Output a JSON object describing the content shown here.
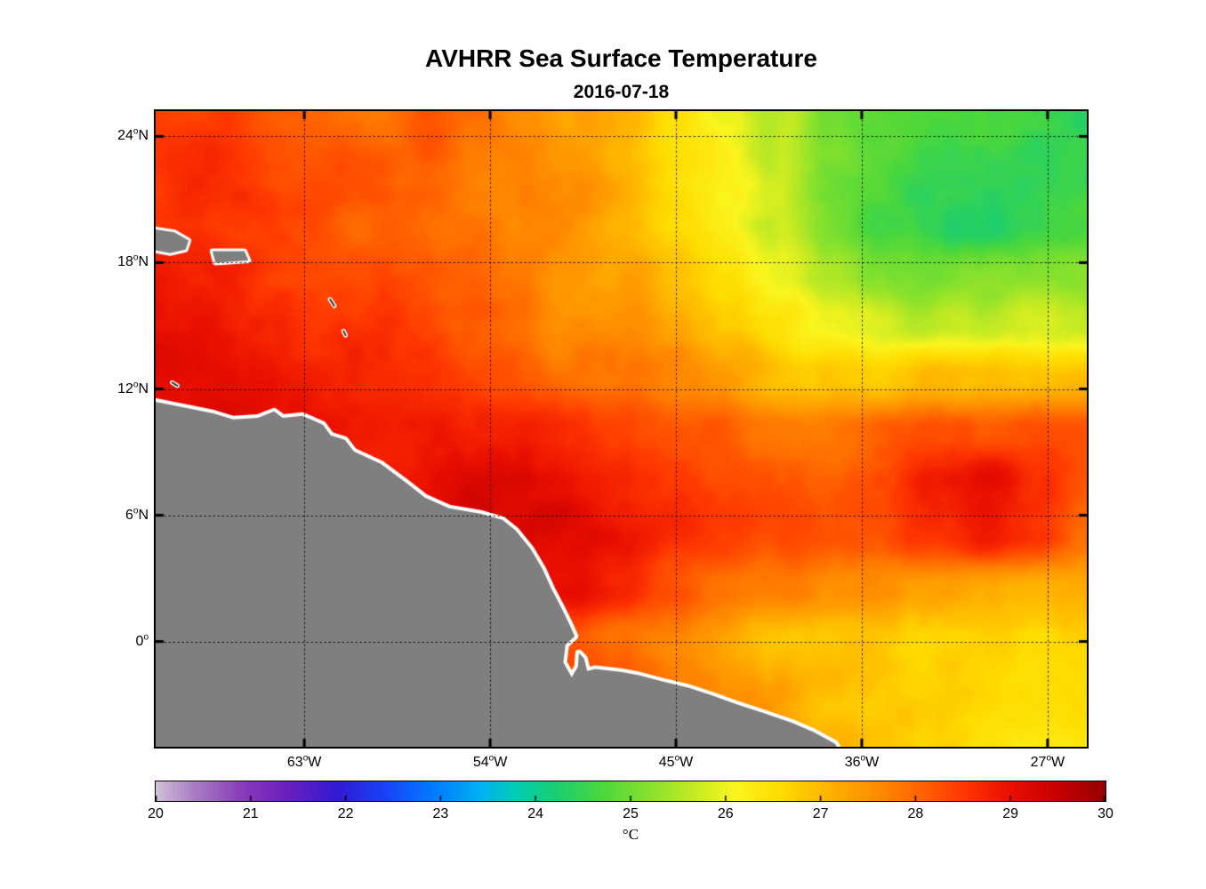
{
  "title": "AVHRR Sea Surface Temperature",
  "subtitle": "2016-07-18",
  "chart_data": {
    "type": "heatmap",
    "title": "AVHRR Sea Surface Temperature",
    "subtitle": "2016-07-18",
    "grid_on": true,
    "x_axis": {
      "label_ticks": [
        "63°W",
        "54°W",
        "45°W",
        "36°W",
        "27°W"
      ],
      "tick_lons": [
        -63,
        -54,
        -45,
        -36,
        -27
      ],
      "range_lon": [
        -70.2,
        -25.1
      ]
    },
    "y_axis": {
      "label_ticks": [
        "24°N",
        "18°N",
        "12°N",
        "6°N",
        "0°"
      ],
      "tick_lats": [
        24,
        18,
        12,
        6,
        0
      ],
      "range_lat": [
        -5.0,
        25.2
      ]
    },
    "colorbar": {
      "min": 20,
      "max": 30,
      "ticks": [
        "20",
        "21",
        "22",
        "23",
        "24",
        "25",
        "26",
        "27",
        "28",
        "29",
        "30"
      ],
      "label": "°C",
      "orientation": "horizontal",
      "colormap_stops": [
        [
          20.0,
          208,
          192,
          216
        ],
        [
          20.4,
          170,
          125,
          195
        ],
        [
          20.9,
          138,
          60,
          185
        ],
        [
          21.4,
          105,
          30,
          190
        ],
        [
          21.9,
          50,
          25,
          210
        ],
        [
          22.4,
          25,
          65,
          245
        ],
        [
          22.9,
          0,
          120,
          255
        ],
        [
          23.4,
          0,
          175,
          245
        ],
        [
          23.8,
          0,
          205,
          180
        ],
        [
          24.2,
          25,
          205,
          115
        ],
        [
          24.7,
          75,
          215,
          60
        ],
        [
          25.2,
          135,
          225,
          45
        ],
        [
          25.7,
          200,
          235,
          35
        ],
        [
          26.1,
          250,
          245,
          30
        ],
        [
          26.6,
          255,
          218,
          0
        ],
        [
          27.0,
          255,
          185,
          0
        ],
        [
          27.5,
          255,
          148,
          0
        ],
        [
          28.0,
          255,
          105,
          0
        ],
        [
          28.5,
          255,
          55,
          0
        ],
        [
          29.0,
          233,
          15,
          0
        ],
        [
          29.5,
          198,
          0,
          0
        ],
        [
          30.0,
          150,
          0,
          0
        ]
      ]
    },
    "sst_grid": {
      "units": "degC",
      "lons": [
        -70,
        -67.5,
        -65,
        -62.5,
        -60,
        -57.5,
        -55,
        -52.5,
        -50,
        -47.5,
        -45,
        -42.5,
        -40,
        -37.5,
        -35,
        -32.5,
        -30,
        -27.5,
        -25
      ],
      "lats": [
        25,
        22.5,
        20,
        17.5,
        15,
        12.5,
        10,
        7.5,
        5,
        2.5,
        0,
        -2.5,
        -5
      ],
      "values_c": [
        [
          28.4,
          28.5,
          28.3,
          28.2,
          28.0,
          28.2,
          27.8,
          27.5,
          27.2,
          27.0,
          26.6,
          26.2,
          25.6,
          25.0,
          24.8,
          24.6,
          24.5,
          24.4,
          24.3
        ],
        [
          28.5,
          28.6,
          28.4,
          28.3,
          28.4,
          28.1,
          27.9,
          27.6,
          27.4,
          27.1,
          26.7,
          26.3,
          25.7,
          25.1,
          24.8,
          24.5,
          24.4,
          24.5,
          24.3
        ],
        [
          28.6,
          28.5,
          28.6,
          28.4,
          28.3,
          28.2,
          28.0,
          27.8,
          27.5,
          27.2,
          26.8,
          26.3,
          25.8,
          25.2,
          24.8,
          24.6,
          24.5,
          24.6,
          24.7
        ],
        [
          28.7,
          28.8,
          28.6,
          28.5,
          28.4,
          28.3,
          28.1,
          27.9,
          27.6,
          27.3,
          27.0,
          26.5,
          26.0,
          25.5,
          25.1,
          24.9,
          25.0,
          25.1,
          25.0
        ],
        [
          28.8,
          28.9,
          28.8,
          28.7,
          28.6,
          28.4,
          28.2,
          28.0,
          27.8,
          27.6,
          27.2,
          26.8,
          26.4,
          26.0,
          25.7,
          25.5,
          25.4,
          25.6,
          25.5
        ],
        [
          29.0,
          29.0,
          28.9,
          28.8,
          28.7,
          28.6,
          28.4,
          28.2,
          28.0,
          27.8,
          27.6,
          27.3,
          27.0,
          26.8,
          26.6,
          27.0,
          26.8,
          26.7,
          26.8
        ],
        [
          29.2,
          29.1,
          29.0,
          29.0,
          28.9,
          28.9,
          28.8,
          28.7,
          28.6,
          28.4,
          28.2,
          28.1,
          28.0,
          27.9,
          27.9,
          28.0,
          28.1,
          28.2,
          28.1
        ],
        [
          29.0,
          29.0,
          29.0,
          29.0,
          29.0,
          29.1,
          29.2,
          29.1,
          29.0,
          28.8,
          28.6,
          28.4,
          28.3,
          28.2,
          28.3,
          28.8,
          29.0,
          28.6,
          28.0
        ],
        [
          29.2,
          29.2,
          29.2,
          29.2,
          29.2,
          29.2,
          29.3,
          29.3,
          29.2,
          29.0,
          28.8,
          28.5,
          28.3,
          28.2,
          28.3,
          28.6,
          28.9,
          28.5,
          27.8
        ],
        [
          28.8,
          28.8,
          28.8,
          28.8,
          28.8,
          28.8,
          28.9,
          29.0,
          28.9,
          28.6,
          28.2,
          28.0,
          27.8,
          27.6,
          27.5,
          27.4,
          27.3,
          27.2,
          27.0
        ],
        [
          28.2,
          28.2,
          28.2,
          28.2,
          28.2,
          28.2,
          28.3,
          28.4,
          28.2,
          27.9,
          27.5,
          27.2,
          27.0,
          26.9,
          26.8,
          26.8,
          26.7,
          26.6,
          26.5
        ],
        [
          28.0,
          28.0,
          28.0,
          28.0,
          28.0,
          28.0,
          28.0,
          28.1,
          28.2,
          28.0,
          27.8,
          27.6,
          27.5,
          27.0,
          26.8,
          26.7,
          26.6,
          26.5,
          26.4
        ],
        [
          27.8,
          27.8,
          27.8,
          27.8,
          27.8,
          27.8,
          27.8,
          27.8,
          27.9,
          27.9,
          27.8,
          27.7,
          27.5,
          27.2,
          26.9,
          26.6,
          26.4,
          26.3,
          26.2
        ]
      ]
    },
    "land": {
      "color": "#7F7F7F",
      "coast_halo_color": "#FFFFFF",
      "islet_color": "#333333",
      "polygons": {
        "mainland": [
          [
            -70.9,
            11.35
          ],
          [
            -70.2,
            11.39
          ],
          [
            -68.9,
            11.14
          ],
          [
            -67.4,
            10.84
          ],
          [
            -66.45,
            10.55
          ],
          [
            -65.25,
            10.63
          ],
          [
            -64.47,
            10.93
          ],
          [
            -64.04,
            10.63
          ],
          [
            -63.09,
            10.72
          ],
          [
            -62.58,
            10.51
          ],
          [
            -62.1,
            10.3
          ],
          [
            -61.72,
            9.79
          ],
          [
            -61.03,
            9.58
          ],
          [
            -60.6,
            9.03
          ],
          [
            -59.3,
            8.44
          ],
          [
            -58.14,
            7.6
          ],
          [
            -57.15,
            6.84
          ],
          [
            -55.99,
            6.33
          ],
          [
            -54.48,
            6.08
          ],
          [
            -53.4,
            5.78
          ],
          [
            -52.76,
            5.27
          ],
          [
            -52.03,
            4.39
          ],
          [
            -51.47,
            3.46
          ],
          [
            -51.04,
            2.53
          ],
          [
            -50.52,
            1.55
          ],
          [
            -50.17,
            0.84
          ],
          [
            -49.9,
            0.25
          ],
          [
            -50.35,
            -0.15
          ],
          [
            -50.45,
            -1.0
          ],
          [
            -50.05,
            -1.7
          ],
          [
            -49.75,
            -1.2
          ],
          [
            -49.7,
            -0.55
          ],
          [
            -49.45,
            -0.8
          ],
          [
            -49.3,
            -1.4
          ],
          [
            -48.9,
            -1.3
          ],
          [
            -47.6,
            -1.45
          ],
          [
            -46.8,
            -1.6
          ],
          [
            -45.65,
            -1.9
          ],
          [
            -44.36,
            -2.2
          ],
          [
            -43.28,
            -2.55
          ],
          [
            -41.99,
            -3.0
          ],
          [
            -40.7,
            -3.42
          ],
          [
            -39.41,
            -3.85
          ],
          [
            -38.33,
            -4.3
          ],
          [
            -37.3,
            -4.85
          ],
          [
            -36.95,
            -5.4
          ],
          [
            -70.9,
            -5.4
          ]
        ],
        "hispaniola": [
          [
            -70.3,
            19.6
          ],
          [
            -69.3,
            19.45
          ],
          [
            -68.6,
            19.05
          ],
          [
            -68.75,
            18.62
          ],
          [
            -69.5,
            18.45
          ],
          [
            -70.3,
            18.6
          ]
        ],
        "puerto_rico": [
          [
            -67.45,
            18.55
          ],
          [
            -65.9,
            18.55
          ],
          [
            -65.7,
            18.1
          ],
          [
            -67.3,
            18.0
          ]
        ]
      },
      "islets": [
        [
          [
            -61.75,
            16.25
          ],
          [
            -61.55,
            15.95
          ]
        ],
        [
          [
            -61.1,
            14.75
          ],
          [
            -61.0,
            14.55
          ]
        ],
        [
          [
            -69.4,
            12.3
          ],
          [
            -69.15,
            12.15
          ]
        ]
      ]
    }
  }
}
